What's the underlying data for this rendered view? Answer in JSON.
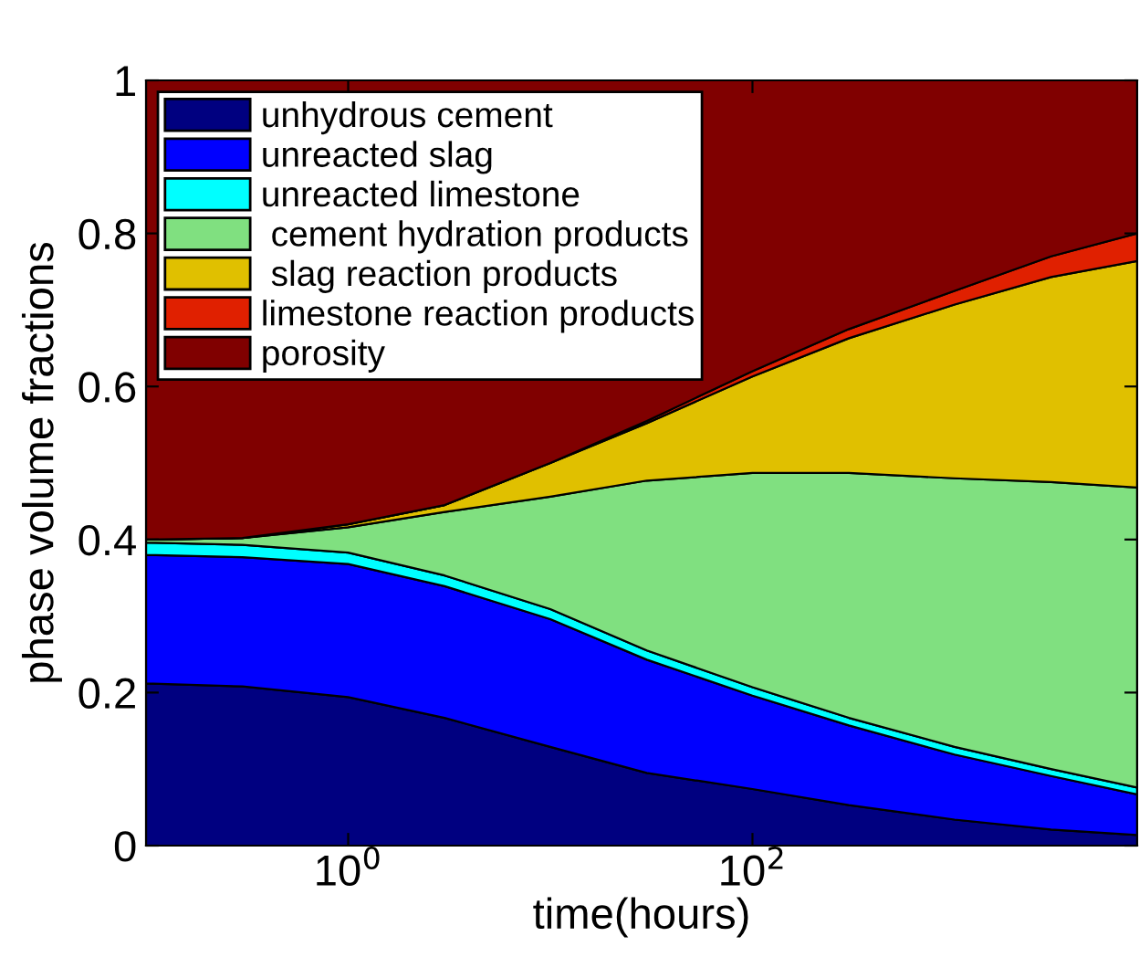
{
  "chart_data": {
    "type": "area",
    "stacked": true,
    "xlabel": "time(hours)",
    "ylabel": "phase volume fractions",
    "x": [
      0.1,
      0.3,
      1,
      3,
      10,
      30,
      100,
      300,
      1000,
      3000,
      8000
    ],
    "series": [
      {
        "name": "unhydrous cement",
        "color": "#000080",
        "values": [
          0.212,
          0.208,
          0.194,
          0.167,
          0.129,
          0.095,
          0.074,
          0.053,
          0.034,
          0.021,
          0.014
        ]
      },
      {
        "name": "unreacted slag",
        "color": "#0000ff",
        "values": [
          0.168,
          0.169,
          0.174,
          0.172,
          0.167,
          0.148,
          0.122,
          0.104,
          0.085,
          0.07,
          0.053
        ]
      },
      {
        "name": "unreacted limestone",
        "color": "#00ffff",
        "values": [
          0.016,
          0.016,
          0.015,
          0.014,
          0.013,
          0.012,
          0.011,
          0.01,
          0.01,
          0.009,
          0.009
        ]
      },
      {
        "name": " cement hydration products",
        "color": "#80e080",
        "values": [
          0.004,
          0.009,
          0.033,
          0.083,
          0.147,
          0.222,
          0.28,
          0.32,
          0.351,
          0.375,
          0.392
        ]
      },
      {
        "name": " slag reaction products",
        "color": "#e0c000",
        "values": [
          0,
          0,
          0.004,
          0.009,
          0.044,
          0.075,
          0.126,
          0.176,
          0.227,
          0.268,
          0.296
        ]
      },
      {
        "name": "limestone reaction products",
        "color": "#e02000",
        "values": [
          0,
          0,
          0,
          0,
          0,
          0.003,
          0.007,
          0.012,
          0.018,
          0.027,
          0.036
        ]
      },
      {
        "name": "porosity",
        "color": "#800000",
        "values": [
          0.6,
          0.598,
          0.58,
          0.555,
          0.5,
          0.445,
          0.38,
          0.325,
          0.275,
          0.23,
          0.2
        ]
      }
    ],
    "log": "x",
    "xlim": [
      0.1,
      8000
    ],
    "xticks": [
      {
        "value": 1,
        "label": "10$^{0}$"
      },
      {
        "value": 100,
        "label": "10$^{2}$"
      }
    ],
    "ylim": [
      0,
      1
    ],
    "yticks": [
      0,
      {
        "value": 0.2,
        "label": "0.2"
      },
      {
        "value": 0.4,
        "label": "0.4"
      },
      {
        "value": 0.6,
        "label": "0.6"
      },
      {
        "value": 0.8,
        "label": "0.8"
      },
      1
    ],
    "grid": false,
    "legend": "top left"
  }
}
